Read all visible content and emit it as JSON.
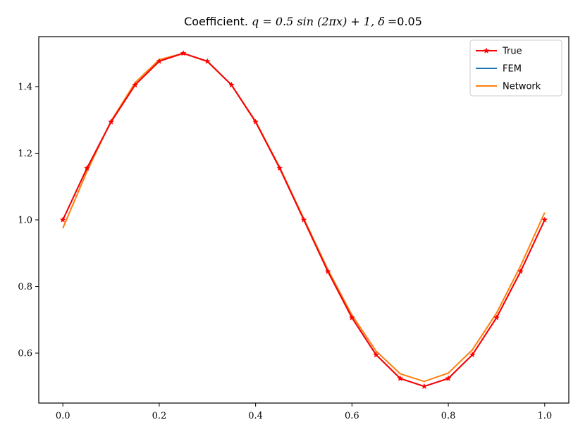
{
  "chart_data": {
    "type": "line",
    "title": {
      "prefix": "Coefficient. ",
      "formula": "q = 0.5 sin (2πx) + 1, δ",
      "suffix": "=0.05"
    },
    "xlabel": "",
    "ylabel": "",
    "xlim": [
      -0.05,
      1.05
    ],
    "ylim": [
      0.45,
      1.55
    ],
    "xticks": [
      0.0,
      0.2,
      0.4,
      0.6,
      0.8,
      1.0
    ],
    "xtick_labels": [
      "0.0",
      "0.2",
      "0.4",
      "0.6",
      "0.8",
      "1.0"
    ],
    "yticks": [
      0.6,
      0.8,
      1.0,
      1.2,
      1.4
    ],
    "ytick_labels": [
      "0.6",
      "0.8",
      "1.0",
      "1.2",
      "1.4"
    ],
    "grid": false,
    "legend_position": "top-right",
    "series": [
      {
        "name": "True",
        "color": "#ff0000",
        "marker": "star",
        "x": [
          0.0,
          0.05,
          0.1,
          0.15,
          0.2,
          0.25,
          0.3,
          0.35,
          0.4,
          0.45,
          0.5,
          0.55,
          0.6,
          0.65,
          0.7,
          0.75,
          0.8,
          0.85,
          0.9,
          0.95,
          1.0
        ],
        "y": [
          1.0,
          1.155,
          1.294,
          1.405,
          1.476,
          1.5,
          1.476,
          1.405,
          1.294,
          1.155,
          1.0,
          0.845,
          0.706,
          0.595,
          0.524,
          0.5,
          0.524,
          0.595,
          0.706,
          0.845,
          1.0
        ]
      },
      {
        "name": "FEM",
        "color": "#1f77b4",
        "marker": "none",
        "x": [
          0.0,
          0.05,
          0.1,
          0.15,
          0.2,
          0.25,
          0.3,
          0.35,
          0.4,
          0.45,
          0.5,
          0.55,
          0.6,
          0.65,
          0.7,
          0.75,
          0.8,
          0.85,
          0.9,
          0.95,
          1.0
        ],
        "y": [
          1.0,
          1.155,
          1.294,
          1.405,
          1.476,
          1.5,
          1.476,
          1.405,
          1.294,
          1.155,
          1.0,
          0.845,
          0.706,
          0.595,
          0.524,
          0.5,
          0.524,
          0.595,
          0.706,
          0.845,
          1.0
        ]
      },
      {
        "name": "Network",
        "color": "#ff7f0e",
        "marker": "none",
        "x": [
          0.0,
          0.05,
          0.1,
          0.15,
          0.2,
          0.25,
          0.3,
          0.35,
          0.4,
          0.45,
          0.5,
          0.55,
          0.6,
          0.65,
          0.7,
          0.75,
          0.8,
          0.85,
          0.9,
          0.95,
          1.0
        ],
        "y": [
          0.975,
          1.145,
          1.297,
          1.412,
          1.481,
          1.5,
          1.475,
          1.405,
          1.296,
          1.158,
          1.004,
          0.851,
          0.714,
          0.606,
          0.538,
          0.515,
          0.54,
          0.61,
          0.72,
          0.862,
          1.022
        ]
      }
    ]
  }
}
